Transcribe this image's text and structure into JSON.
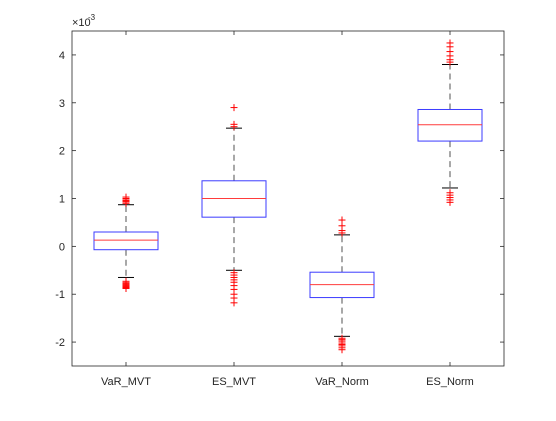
{
  "chart_data": {
    "type": "boxplot",
    "title": "",
    "xlabel": "",
    "ylabel": "",
    "y_exponent_label": "×10",
    "y_exponent_power": "-3",
    "ylim": [
      -2.5,
      4.5
    ],
    "yticks": [
      -2,
      -1,
      0,
      1,
      2,
      3,
      4
    ],
    "ytick_labels": [
      "-2",
      "-1",
      "0",
      "1",
      "2",
      "3",
      "4"
    ],
    "grid": false,
    "categories": [
      "VaR_MVT",
      "ES_MVT",
      "VaR_Norm",
      "ES_Norm"
    ],
    "boxes": [
      {
        "name": "VaR_MVT",
        "whisker_low": -0.65,
        "q1": -0.07,
        "median": 0.13,
        "q3": 0.3,
        "whisker_high": 0.87,
        "outliers": [
          -0.73,
          -0.76,
          -0.78,
          -0.8,
          -0.82,
          -0.84,
          -0.86,
          -0.88,
          0.9,
          0.93,
          0.95,
          0.97,
          1.0,
          1.03
        ]
      },
      {
        "name": "ES_MVT",
        "whisker_low": -0.5,
        "q1": 0.61,
        "median": 1.0,
        "q3": 1.37,
        "whisker_high": 2.47,
        "outliers": [
          -0.55,
          -0.6,
          -0.65,
          -0.7,
          -0.75,
          -0.82,
          -0.9,
          -1.0,
          -1.08,
          -1.18,
          2.5,
          2.55,
          2.9
        ]
      },
      {
        "name": "VaR_Norm",
        "whisker_low": -1.88,
        "q1": -1.07,
        "median": -0.8,
        "q3": -0.54,
        "whisker_high": 0.24,
        "outliers": [
          -1.92,
          -1.95,
          -1.98,
          -2.02,
          -2.05,
          -2.08,
          -2.12,
          -2.16,
          0.28,
          0.33,
          0.43,
          0.55
        ]
      },
      {
        "name": "ES_Norm",
        "whisker_low": 1.22,
        "q1": 2.2,
        "median": 2.54,
        "q3": 2.86,
        "whisker_high": 3.8,
        "outliers": [
          0.92,
          0.97,
          1.02,
          1.07,
          1.12,
          3.85,
          3.9,
          3.98,
          4.07,
          4.17,
          4.25
        ]
      }
    ],
    "colors": {
      "box": "#3b3bff",
      "median": "#ff3b3b",
      "whisker": "#6e6e6e",
      "outlier": "#ff0000",
      "axis": "#262626"
    }
  }
}
